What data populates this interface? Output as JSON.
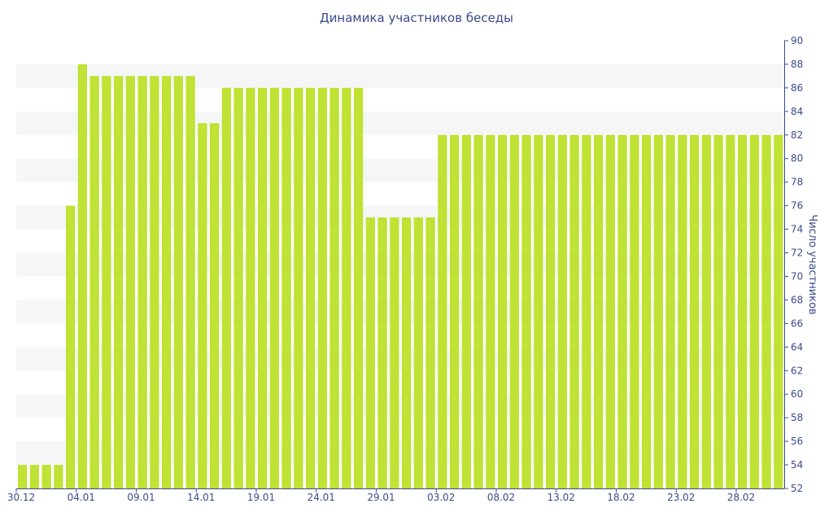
{
  "chart_data": {
    "type": "bar",
    "title": "Динамика участников беседы",
    "xlabel": "",
    "ylabel": "Число участников",
    "ylim": [
      52,
      90
    ],
    "y_axis_position": "right",
    "y_ticks": [
      52,
      54,
      56,
      58,
      60,
      62,
      64,
      66,
      68,
      70,
      72,
      74,
      76,
      78,
      80,
      82,
      84,
      86,
      88,
      90
    ],
    "x_tick_labels": [
      "30.12",
      "04.01",
      "09.01",
      "14.01",
      "19.01",
      "24.01",
      "29.01",
      "03.02",
      "08.02",
      "13.02",
      "18.02",
      "23.02",
      "28.02"
    ],
    "categories": [
      "30.12",
      "31.12",
      "01.01",
      "02.01",
      "03.01",
      "04.01",
      "05.01",
      "06.01",
      "07.01",
      "08.01",
      "09.01",
      "10.01",
      "11.01",
      "12.01",
      "13.01",
      "14.01",
      "15.01",
      "16.01",
      "17.01",
      "18.01",
      "19.01",
      "20.01",
      "21.01",
      "22.01",
      "23.01",
      "24.01",
      "25.01",
      "26.01",
      "27.01",
      "28.01",
      "29.01",
      "30.01",
      "31.01",
      "01.02",
      "02.02",
      "03.02",
      "04.02",
      "05.02",
      "06.02",
      "07.02",
      "08.02",
      "09.02",
      "10.02",
      "11.02",
      "12.02",
      "13.02",
      "14.02",
      "15.02",
      "16.02",
      "17.02",
      "18.02",
      "19.02",
      "20.02",
      "21.02",
      "22.02",
      "23.02",
      "24.02",
      "25.02",
      "26.02",
      "27.02",
      "28.02",
      "01.03",
      "02.03",
      "03.03"
    ],
    "values": [
      54,
      54,
      54,
      54,
      76,
      88,
      87,
      87,
      87,
      87,
      87,
      87,
      87,
      87,
      87,
      83,
      83,
      86,
      86,
      86,
      86,
      86,
      86,
      86,
      86,
      86,
      86,
      86,
      86,
      75,
      75,
      75,
      75,
      75,
      75,
      82,
      82,
      82,
      82,
      82,
      82,
      82,
      82,
      82,
      82,
      82,
      82,
      82,
      82,
      82,
      82,
      82,
      82,
      82,
      82,
      82,
      82,
      82,
      82,
      82,
      82,
      82,
      82,
      82
    ],
    "colors": {
      "bar": "#bfe234",
      "text": "#3b4a8c",
      "band": "#f6f6f6",
      "axis": "#3b4a8c"
    },
    "grid": "alternating horizontal bands"
  }
}
